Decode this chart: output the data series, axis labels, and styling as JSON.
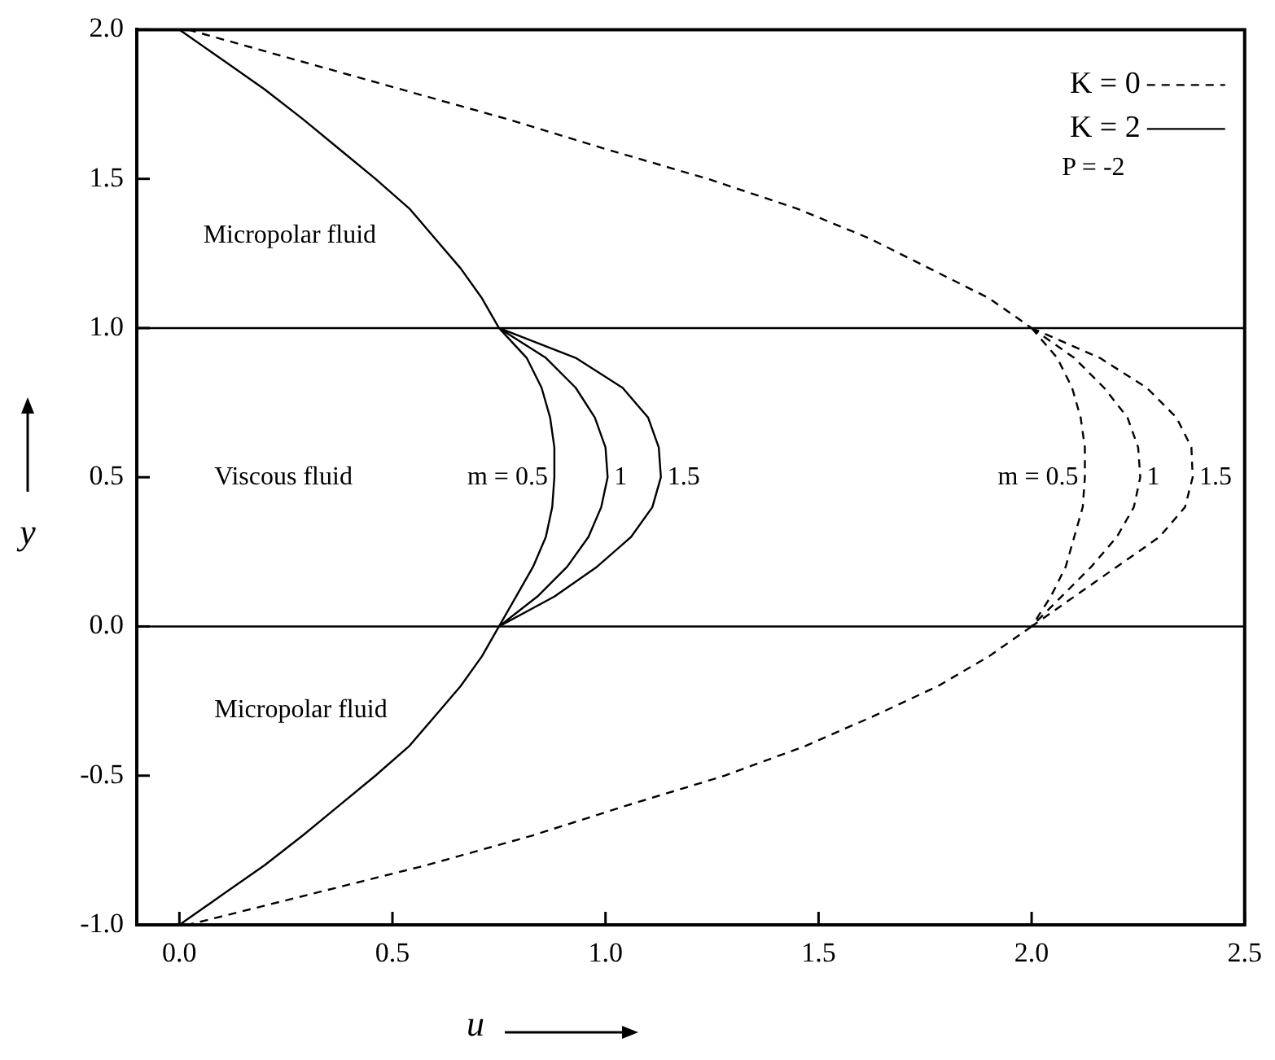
{
  "chart_data": {
    "type": "line",
    "xlabel": "u",
    "ylabel": "y",
    "xlim": [
      -0.1,
      2.5
    ],
    "ylim": [
      -1,
      2
    ],
    "xticks": [
      {
        "value": 0,
        "label": "0.0"
      },
      {
        "value": 0.5,
        "label": "0.5"
      },
      {
        "value": 1,
        "label": "1.0"
      },
      {
        "value": 1.5,
        "label": "1.5"
      },
      {
        "value": 2,
        "label": "2.0"
      },
      {
        "value": 2.5,
        "label": "2.5"
      }
    ],
    "yticks": [
      {
        "value": -1,
        "label": "-1.0"
      },
      {
        "value": -0.5,
        "label": "-0.5"
      },
      {
        "value": 0,
        "label": "0.0"
      },
      {
        "value": 0.5,
        "label": "0.5"
      },
      {
        "value": 1,
        "label": "1.0"
      },
      {
        "value": 1.5,
        "label": "1.5"
      },
      {
        "value": 2,
        "label": "2.0"
      }
    ],
    "grid": false,
    "legend": "top right",
    "marker": "none",
    "series": [
      {
        "name": "K = 0",
        "color": "#000000",
        "line_style": "dashed",
        "x": [
          0.02,
          0.27,
          0.52,
          0.77,
          1.0,
          1.24,
          1.45,
          1.62,
          1.76,
          1.9,
          2.0,
          null,
          2.0,
          2.06,
          2.095,
          2.115,
          2.125,
          2.125,
          2.12,
          2.1,
          2.08,
          2.045,
          2.0,
          null,
          2.0,
          2.1,
          2.17,
          2.225,
          2.25,
          2.255,
          2.24,
          2.2,
          2.14,
          2.07,
          2.0,
          null,
          2.0,
          2.16,
          2.27,
          2.34,
          2.375,
          2.378,
          2.36,
          2.3,
          2.2,
          2.1,
          2.0,
          null,
          2.0,
          1.9,
          1.78,
          1.63,
          1.47,
          1.28,
          1.05,
          0.83,
          0.58,
          0.3,
          0.02
        ],
        "values": [
          2,
          1.9,
          1.8,
          1.7,
          1.6,
          1.5,
          1.4,
          1.3,
          1.2,
          1.1,
          1.0,
          null,
          1,
          0.9,
          0.8,
          0.7,
          0.6,
          0.5,
          0.4,
          0.3,
          0.2,
          0.1,
          0,
          null,
          1,
          0.9,
          0.8,
          0.7,
          0.6,
          0.5,
          0.4,
          0.3,
          0.2,
          0.1,
          0,
          null,
          1,
          0.9,
          0.8,
          0.7,
          0.6,
          0.5,
          0.4,
          0.3,
          0.2,
          0.1,
          0,
          null,
          0,
          -0.1,
          -0.2,
          -0.3,
          -0.4,
          -0.5,
          -0.6,
          -0.7,
          -0.8,
          -0.9,
          -1
        ]
      },
      {
        "name": "K = 2",
        "color": "#000000",
        "line_style": "solid",
        "x": [
          0,
          0.1,
          0.2,
          0.29,
          0.375,
          0.46,
          0.54,
          0.6,
          0.66,
          0.71,
          0.75,
          null,
          0.75,
          0.815,
          0.85,
          0.87,
          0.88,
          0.88,
          0.875,
          0.86,
          0.83,
          0.79,
          0.75,
          null,
          0.75,
          0.86,
          0.93,
          0.975,
          1.0,
          1.005,
          0.99,
          0.96,
          0.91,
          0.84,
          0.75,
          null,
          0.75,
          0.93,
          1.04,
          1.1,
          1.125,
          1.13,
          1.11,
          1.06,
          0.98,
          0.88,
          0.75,
          null,
          0.75,
          0.71,
          0.66,
          0.6,
          0.54,
          0.46,
          0.375,
          0.29,
          0.2,
          0.1,
          0
        ],
        "values": [
          2,
          1.9,
          1.8,
          1.7,
          1.6,
          1.5,
          1.4,
          1.3,
          1.2,
          1.1,
          1.0,
          null,
          1,
          0.9,
          0.8,
          0.7,
          0.6,
          0.5,
          0.4,
          0.3,
          0.2,
          0.1,
          0,
          null,
          1,
          0.9,
          0.8,
          0.7,
          0.6,
          0.5,
          0.4,
          0.3,
          0.2,
          0.1,
          0,
          null,
          1,
          0.9,
          0.8,
          0.7,
          0.6,
          0.5,
          0.4,
          0.3,
          0.2,
          0.1,
          0,
          null,
          0,
          -0.1,
          -0.2,
          -0.3,
          -0.4,
          -0.5,
          -0.6,
          -0.7,
          -0.8,
          -0.9,
          -1
        ]
      }
    ],
    "ref_lines": [
      {
        "axis": "y",
        "value": 1,
        "color": "#000000"
      },
      {
        "axis": "y",
        "value": 0,
        "color": "#000000"
      }
    ],
    "annotations": [
      "Micropolar fluid",
      "Viscous fluid",
      "Micropolar fluid",
      "P = -2",
      {
        "text": "m = 0.5",
        "x": 0.88,
        "y": 0.5
      },
      {
        "text": "1",
        "x": 1.005,
        "y": 0.5
      },
      {
        "text": "1.5",
        "x": 1.13,
        "y": 0.5
      },
      {
        "text": "m = 0.5",
        "x": 2.125,
        "y": 0.5
      },
      {
        "text": "1",
        "x": 2.255,
        "y": 0.5
      },
      {
        "text": "1.5",
        "x": 2.378,
        "y": 0.5
      }
    ]
  }
}
